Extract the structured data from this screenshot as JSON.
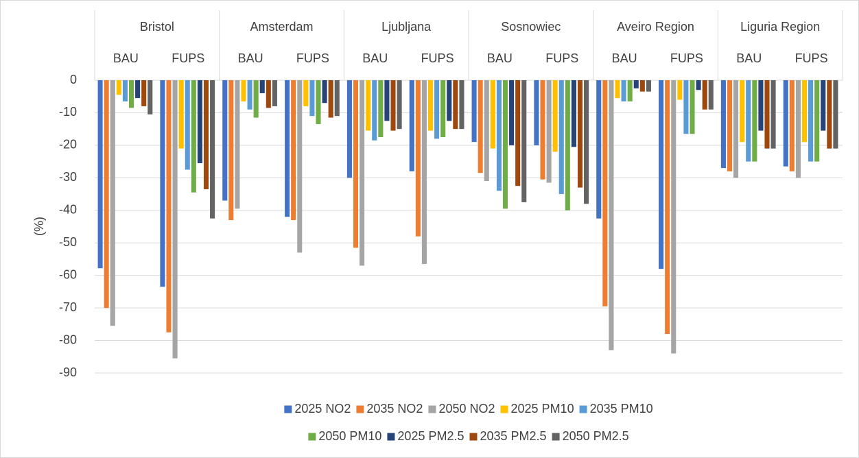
{
  "chart_data": {
    "type": "bar",
    "y_label": "(%)",
    "groups": [
      "Bristol",
      "Amsterdam",
      "Ljubljana",
      "Sosnowiec",
      "Aveiro Region",
      "Liguria Region"
    ],
    "categories": [
      "BAU",
      "FUPS",
      "BAU",
      "FUPS",
      "BAU",
      "FUPS",
      "BAU",
      "FUPS",
      "BAU",
      "FUPS",
      "BAU",
      "FUPS"
    ],
    "ylim": [
      -90,
      0
    ],
    "yticks": [
      0,
      -10,
      -20,
      -30,
      -40,
      -50,
      -60,
      -70,
      -80,
      -90
    ],
    "grid": true,
    "legend": "bottom",
    "series": [
      {
        "name": "2025 NO2",
        "color": "#4472c4",
        "values": [
          -57.8,
          -63.5,
          -37,
          -42,
          -30,
          -28,
          -19,
          -20,
          -42.5,
          -58,
          -27,
          -26.5
        ]
      },
      {
        "name": "2035 NO2",
        "color": "#ed7d31",
        "values": [
          -70,
          -77.5,
          -43,
          -43,
          -51.5,
          -48,
          -28.5,
          -30.5,
          -69.5,
          -78,
          -28,
          -28
        ]
      },
      {
        "name": "2050 NO2",
        "color": "#a5a5a5",
        "values": [
          -75.5,
          -85.5,
          -39.5,
          -53,
          -57,
          -56.5,
          -31,
          -31.5,
          -83,
          -84,
          -30,
          -30
        ]
      },
      {
        "name": "2025 PM10",
        "color": "#ffc000",
        "values": [
          -4.5,
          -21,
          -6.5,
          -8,
          -15.5,
          -15.5,
          -21,
          -22,
          -5.5,
          -6,
          -19,
          -19
        ]
      },
      {
        "name": "2035 PM10",
        "color": "#5b9bd5",
        "values": [
          -6.5,
          -27.5,
          -9,
          -11,
          -18.5,
          -18,
          -34,
          -35,
          -6.5,
          -16.5,
          -25,
          -25
        ]
      },
      {
        "name": "2050 PM10",
        "color": "#70ad47",
        "values": [
          -8.5,
          -34.5,
          -11.5,
          -13.5,
          -17.5,
          -17.5,
          -39.5,
          -40,
          -6.5,
          -16.5,
          -25,
          -25
        ]
      },
      {
        "name": "2025 PM2.5",
        "color": "#264478",
        "values": [
          -5.5,
          -25.5,
          -4,
          -7,
          -12.5,
          -12.5,
          -20,
          -20.5,
          -2.5,
          -3,
          -15.5,
          -15.5
        ]
      },
      {
        "name": "2035 PM2.5",
        "color": "#9e480e",
        "values": [
          -8,
          -33.5,
          -8.5,
          -11.5,
          -15.5,
          -15,
          -32.5,
          -33,
          -3.5,
          -9,
          -21,
          -21
        ]
      },
      {
        "name": "2050 PM2.5",
        "color": "#636363",
        "values": [
          -10.5,
          -42.5,
          -8,
          -11,
          -15,
          -15,
          -37.5,
          -38,
          -3.5,
          -9,
          -21,
          -21
        ]
      }
    ]
  }
}
